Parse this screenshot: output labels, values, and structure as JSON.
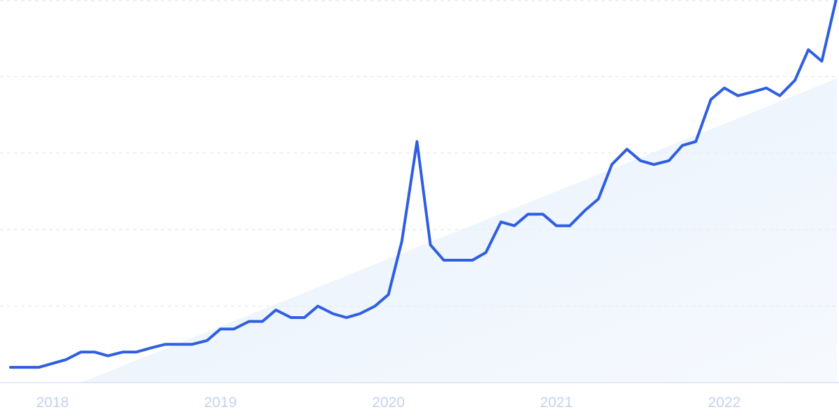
{
  "chart_data": {
    "type": "line",
    "title": "",
    "xlabel": "",
    "ylabel": "",
    "x_tick_labels": [
      "2018",
      "2019",
      "2020",
      "2021",
      "2022"
    ],
    "x_tick_years": [
      2018,
      2019,
      2020,
      2021,
      2022
    ],
    "x_range": [
      2017.75,
      2022.67
    ],
    "ylim": [
      0,
      100
    ],
    "gridlines": [
      0,
      20,
      40,
      60,
      80,
      100
    ],
    "grid": true,
    "legend": "none",
    "colors": {
      "line": "#2f5fe0",
      "trend_fill": "#e6f0fc",
      "grid": "#dde3ee",
      "tick_label": "#c3d3ec"
    },
    "trend": {
      "x": [
        2018.17,
        2022.67
      ],
      "y": [
        0,
        79.5
      ]
    },
    "series": [
      {
        "x": [
          2017.75,
          2017.83,
          2017.92,
          2018.0,
          2018.08,
          2018.17,
          2018.25,
          2018.33,
          2018.42,
          2018.5,
          2018.58,
          2018.67,
          2018.75,
          2018.83,
          2018.92,
          2019.0,
          2019.08,
          2019.17,
          2019.25,
          2019.33,
          2019.42,
          2019.5,
          2019.58,
          2019.67,
          2019.75,
          2019.83,
          2019.92,
          2020.0,
          2020.08,
          2020.17,
          2020.25,
          2020.33,
          2020.42,
          2020.5,
          2020.58,
          2020.67,
          2020.75,
          2020.83,
          2020.92,
          2021.0,
          2021.08,
          2021.17,
          2021.25,
          2021.33,
          2021.42,
          2021.5,
          2021.58,
          2021.67,
          2021.75,
          2021.83,
          2021.92,
          2022.0,
          2022.08,
          2022.17,
          2022.25,
          2022.33,
          2022.42,
          2022.5,
          2022.58,
          2022.67
        ],
        "values": [
          4,
          4,
          4,
          5,
          6,
          8,
          8,
          7,
          8,
          8,
          9,
          10,
          10,
          10,
          11,
          14,
          14,
          16,
          16,
          19,
          17,
          17,
          20,
          18,
          17,
          18,
          20,
          23,
          37,
          63,
          36,
          32,
          32,
          32,
          34,
          42,
          41,
          44,
          44,
          41,
          41,
          45,
          48,
          57,
          61,
          58,
          57,
          58,
          62,
          63,
          74,
          77,
          75,
          76,
          77,
          75,
          79,
          87,
          84,
          101
        ]
      }
    ]
  }
}
